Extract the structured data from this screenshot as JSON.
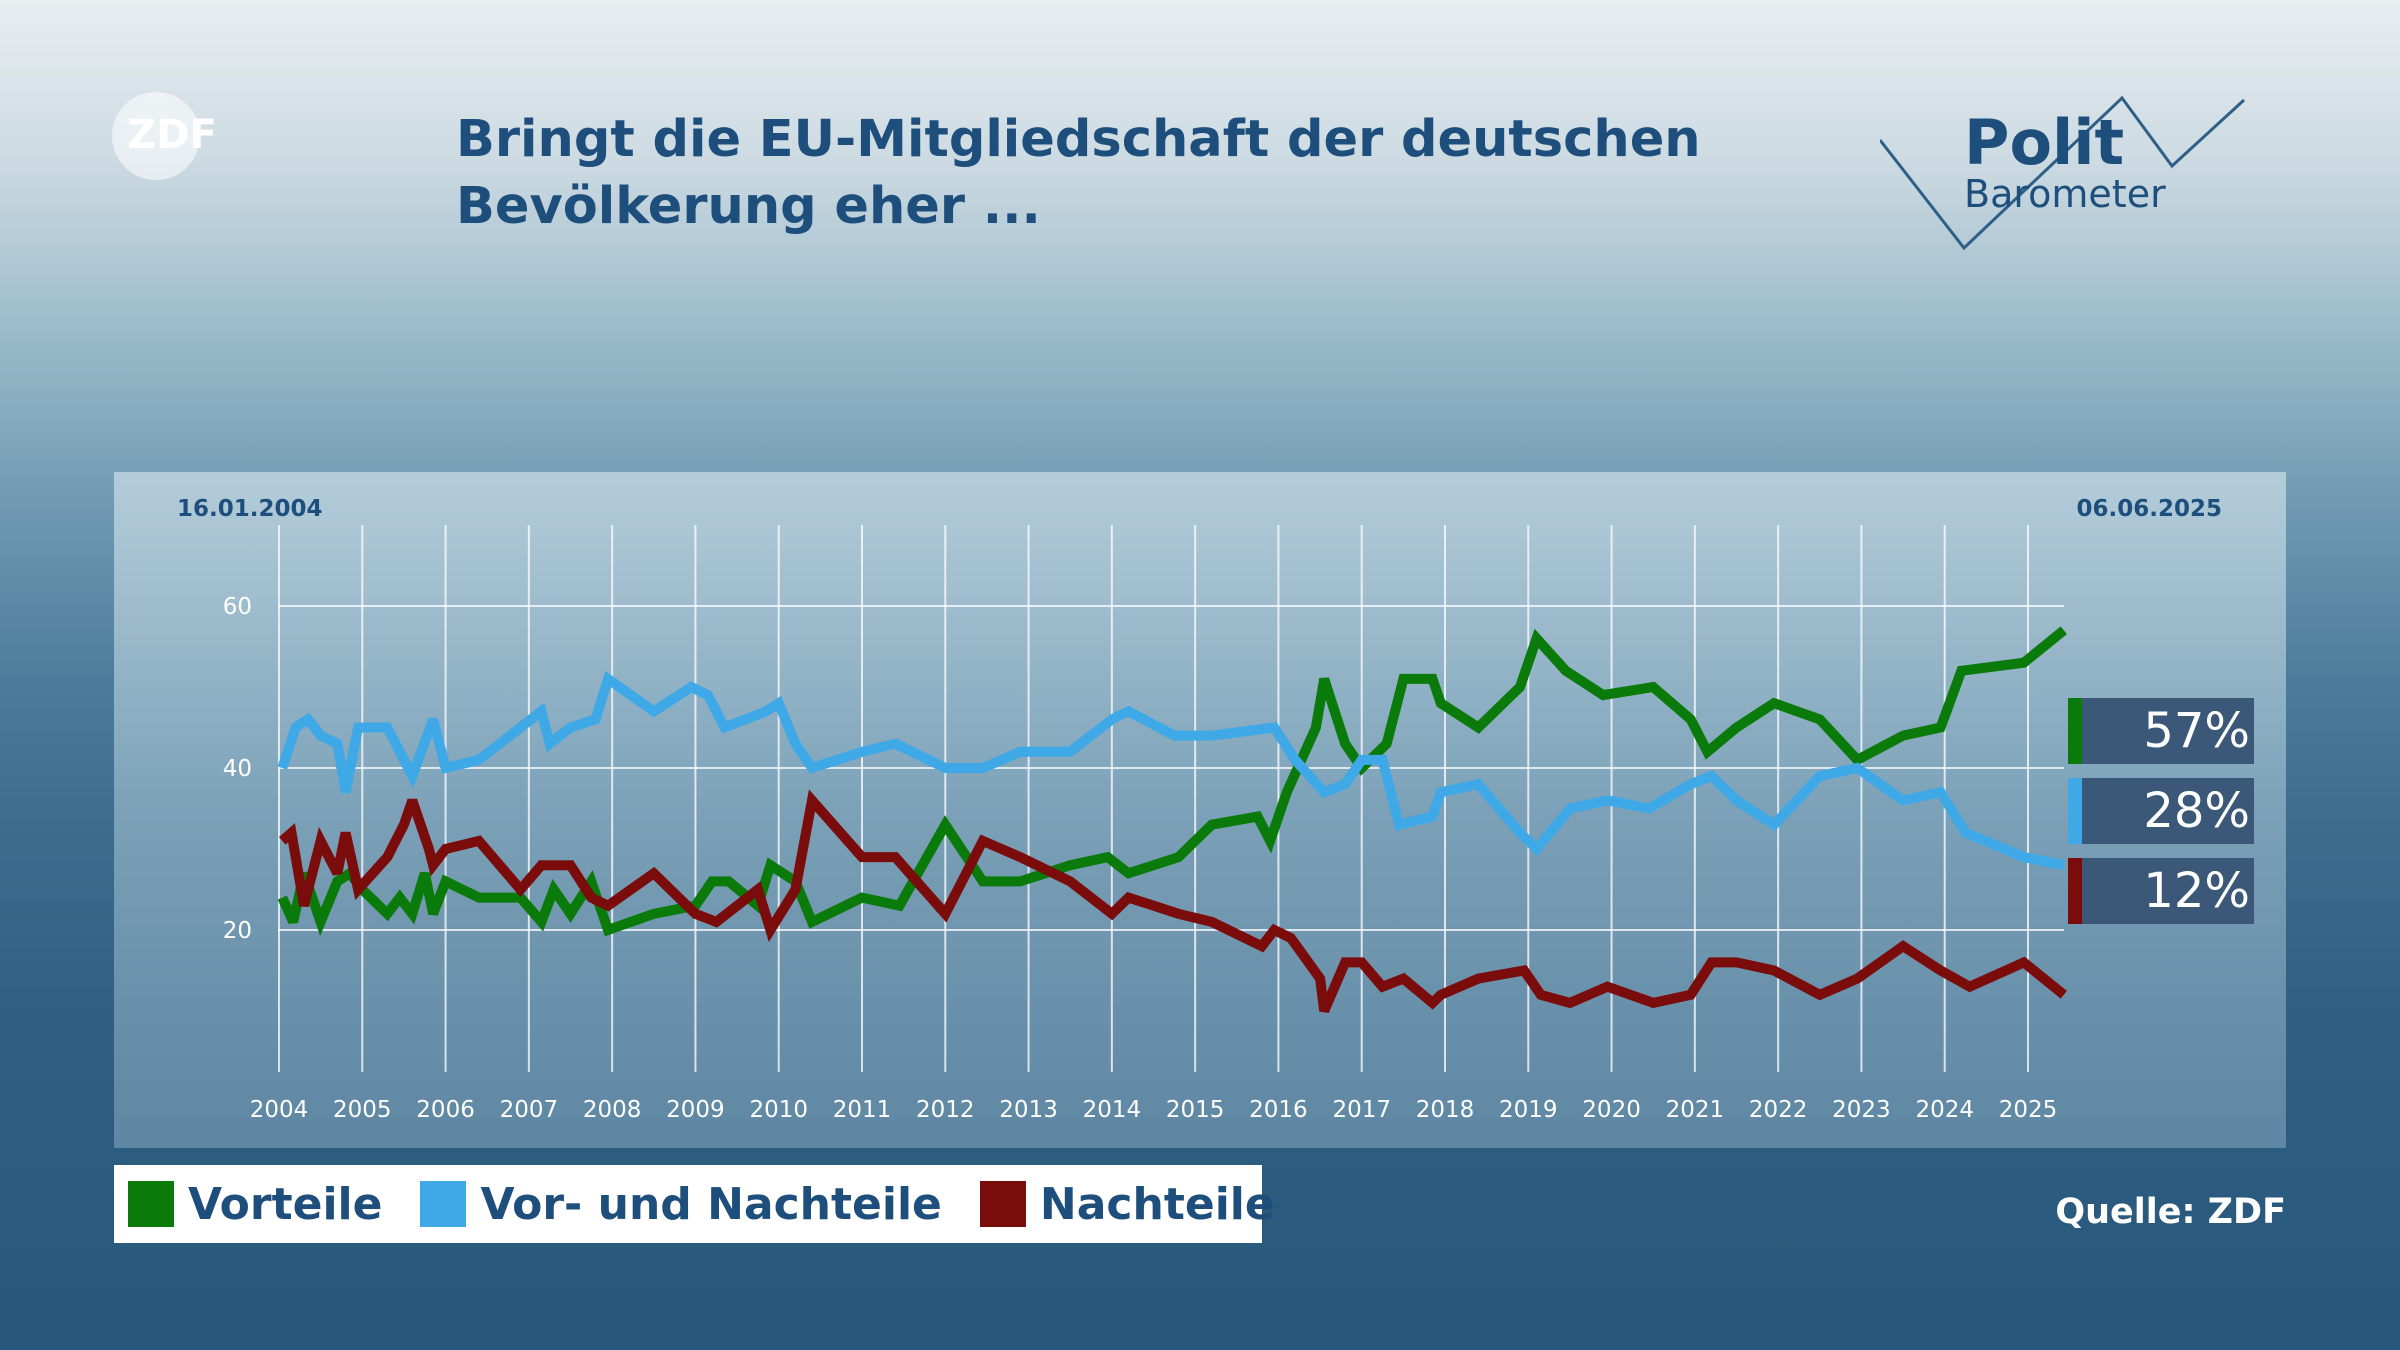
{
  "header": {
    "title_line1": "Bringt die EU-Mitgliedschaft der deutschen",
    "title_line2": "Bevölkerung eher ...",
    "logo_left": "ZDF",
    "logo_right_line1": "Polit",
    "logo_right_line2": "Barometer"
  },
  "source": "Quelle: ZDF",
  "legend": [
    {
      "label": "Vorteile",
      "color": "#0a7a0a"
    },
    {
      "label": "Vor- und Nachteile",
      "color": "#3fa9e8"
    },
    {
      "label": "Nachteile",
      "color": "#7a0c0c"
    }
  ],
  "badges": [
    {
      "value": "57%",
      "color": "#0a7a0a"
    },
    {
      "value": "28%",
      "color": "#3fa9e8"
    },
    {
      "value": "12%",
      "color": "#7a0c0c"
    }
  ],
  "chart_data": {
    "type": "line",
    "date_start": "16.01.2004",
    "date_end": "06.06.2025",
    "xlim": [
      2004.04,
      2025.43
    ],
    "ylim": [
      0,
      60
    ],
    "yticks": [
      20,
      40,
      60
    ],
    "xticks": [
      2004,
      2005,
      2006,
      2007,
      2008,
      2009,
      2010,
      2011,
      2012,
      2013,
      2014,
      2015,
      2016,
      2017,
      2018,
      2019,
      2020,
      2021,
      2022,
      2023,
      2024,
      2025
    ],
    "grid": true,
    "legend_position": "bottom",
    "series": [
      {
        "name": "Vorteile",
        "color": "#0a7a0a",
        "x": [
          2004.04,
          2004.17,
          2004.3,
          2004.5,
          2004.7,
          2004.85,
          2005.0,
          2005.3,
          2005.45,
          2005.6,
          2005.75,
          2005.85,
          2006.0,
          2006.4,
          2006.9,
          2007.15,
          2007.3,
          2007.5,
          2007.75,
          2007.95,
          2008.5,
          2009.0,
          2009.2,
          2009.4,
          2009.75,
          2009.9,
          2010.2,
          2010.4,
          2011.0,
          2011.45,
          2012.0,
          2012.45,
          2012.9,
          2013.5,
          2013.95,
          2014.2,
          2014.8,
          2015.2,
          2015.75,
          2015.9,
          2016.1,
          2016.45,
          2016.55,
          2016.8,
          2017.0,
          2017.3,
          2017.5,
          2017.85,
          2017.95,
          2018.4,
          2018.9,
          2019.1,
          2019.45,
          2019.9,
          2020.5,
          2020.95,
          2021.15,
          2021.5,
          2021.95,
          2022.5,
          2022.95,
          2023.5,
          2023.95,
          2024.2,
          2024.95,
          2025.43
        ],
        "values": [
          24,
          21,
          27,
          21,
          26,
          27,
          25,
          22,
          24,
          22,
          27,
          22,
          26,
          24,
          24,
          21,
          25,
          22,
          26,
          20,
          22,
          23,
          26,
          26,
          23,
          28,
          26,
          21,
          24,
          23,
          33,
          26,
          26,
          28,
          29,
          27,
          29,
          33,
          34,
          31,
          37,
          45,
          51,
          43,
          40,
          43,
          51,
          51,
          48,
          45,
          50,
          56,
          52,
          49,
          50,
          46,
          42,
          45,
          48,
          46,
          41,
          44,
          45,
          52,
          53,
          57
        ]
      },
      {
        "name": "Vor- und Nachteile",
        "color": "#3fa9e8",
        "x": [
          2004.04,
          2004.2,
          2004.35,
          2004.5,
          2004.7,
          2004.8,
          2004.95,
          2005.3,
          2005.6,
          2005.85,
          2006.0,
          2006.4,
          2006.9,
          2007.15,
          2007.25,
          2007.5,
          2007.8,
          2007.95,
          2008.5,
          2008.95,
          2009.15,
          2009.35,
          2009.85,
          2010.0,
          2010.2,
          2010.4,
          2011.0,
          2011.4,
          2012.0,
          2012.45,
          2012.9,
          2013.5,
          2014.0,
          2014.2,
          2014.75,
          2015.2,
          2015.95,
          2016.2,
          2016.55,
          2016.8,
          2017.0,
          2017.25,
          2017.45,
          2017.85,
          2017.95,
          2018.4,
          2018.9,
          2019.1,
          2019.5,
          2019.95,
          2020.45,
          2020.95,
          2021.2,
          2021.5,
          2021.95,
          2022.5,
          2022.95,
          2023.5,
          2023.95,
          2024.25,
          2024.95,
          2025.43
        ],
        "values": [
          40,
          45,
          46,
          44,
          43,
          37,
          45,
          45,
          39,
          46,
          40,
          41,
          45,
          47,
          43,
          45,
          46,
          51,
          47,
          50,
          49,
          45,
          47,
          48,
          43,
          40,
          42,
          43,
          40,
          40,
          42,
          42,
          46,
          47,
          44,
          44,
          45,
          41,
          37,
          38,
          41,
          41,
          33,
          34,
          37,
          38,
          32,
          30,
          35,
          36,
          35,
          38,
          39,
          36,
          33,
          39,
          40,
          36,
          37,
          32,
          29,
          28
        ]
      },
      {
        "name": "Nachteile",
        "color": "#7a0c0c",
        "x": [
          2004.04,
          2004.15,
          2004.3,
          2004.5,
          2004.7,
          2004.8,
          2004.95,
          2005.3,
          2005.5,
          2005.6,
          2005.8,
          2005.85,
          2006.0,
          2006.4,
          2006.9,
          2007.15,
          2007.5,
          2007.75,
          2007.95,
          2008.5,
          2009.0,
          2009.25,
          2009.75,
          2009.9,
          2010.2,
          2010.4,
          2011.0,
          2011.4,
          2012.0,
          2012.45,
          2012.9,
          2013.5,
          2014.0,
          2014.2,
          2014.8,
          2015.2,
          2015.8,
          2015.95,
          2016.15,
          2016.5,
          2016.55,
          2016.8,
          2017.0,
          2017.25,
          2017.5,
          2017.85,
          2017.95,
          2018.4,
          2018.95,
          2019.15,
          2019.5,
          2019.95,
          2020.5,
          2020.95,
          2021.2,
          2021.5,
          2021.95,
          2022.5,
          2022.95,
          2023.5,
          2023.95,
          2024.3,
          2024.95,
          2025.43
        ],
        "values": [
          31,
          32,
          23,
          31,
          27,
          32,
          25,
          29,
          33,
          36,
          30,
          28,
          30,
          31,
          25,
          28,
          28,
          24,
          23,
          27,
          22,
          21,
          25,
          20,
          25,
          36,
          29,
          29,
          22,
          31,
          29,
          26,
          22,
          24,
          22,
          21,
          18,
          20,
          19,
          14,
          10,
          16,
          16,
          13,
          14,
          11,
          12,
          14,
          15,
          12,
          11,
          13,
          11,
          12,
          16,
          16,
          15,
          12,
          14,
          18,
          15,
          13,
          16,
          12
        ]
      }
    ]
  }
}
